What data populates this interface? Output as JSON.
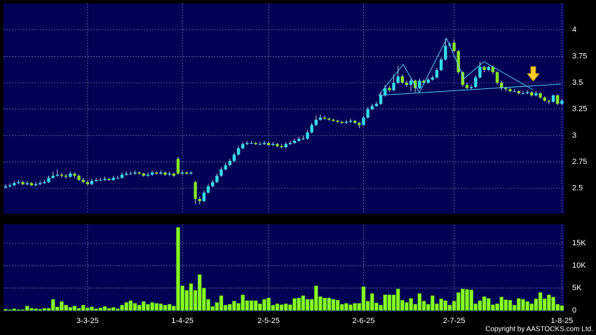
{
  "chart_data": [
    {
      "type": "candlestick",
      "open": [
        2.51,
        2.52,
        2.53,
        2.55,
        2.56,
        2.54,
        2.55,
        2.53,
        2.54,
        2.55,
        2.56,
        2.6,
        2.62,
        2.63,
        2.62,
        2.61,
        2.64,
        2.62,
        2.58,
        2.56,
        2.54,
        2.57,
        2.58,
        2.58,
        2.59,
        2.58,
        2.6,
        2.6,
        2.63,
        2.64,
        2.64,
        2.65,
        2.64,
        2.62,
        2.63,
        2.65,
        2.64,
        2.65,
        2.63,
        2.64,
        2.78,
        2.64,
        2.65,
        2.64,
        2.56,
        2.4,
        2.38,
        2.46,
        2.52,
        2.56,
        2.62,
        2.68,
        2.72,
        2.76,
        2.82,
        2.88,
        2.92,
        2.93,
        2.93,
        2.92,
        2.92,
        2.93,
        2.91,
        2.92,
        2.9,
        2.89,
        2.92,
        2.93,
        2.95,
        2.97,
        2.97,
        3.03,
        3.1,
        3.15,
        3.17,
        3.16,
        3.15,
        3.14,
        3.13,
        3.12,
        3.13,
        3.14,
        3.12,
        3.1,
        3.17,
        3.25,
        3.28,
        3.3,
        3.38,
        3.45,
        3.43,
        3.5,
        3.56,
        3.5,
        3.48,
        3.52,
        3.45,
        3.52,
        3.5,
        3.53,
        3.55,
        3.62,
        3.72,
        3.85,
        3.88,
        3.8,
        3.6,
        3.48,
        3.45,
        3.46,
        3.55,
        3.65,
        3.62,
        3.65,
        3.6,
        3.5,
        3.45,
        3.44,
        3.42,
        3.42,
        3.4,
        3.4,
        3.41,
        3.38,
        3.4,
        3.36,
        3.33,
        3.32,
        3.38,
        3.3
      ],
      "high": [
        2.54,
        2.55,
        2.57,
        2.58,
        2.57,
        2.57,
        2.56,
        2.56,
        2.57,
        2.58,
        2.62,
        2.66,
        2.68,
        2.65,
        2.64,
        2.66,
        2.65,
        2.63,
        2.6,
        2.58,
        2.59,
        2.6,
        2.6,
        2.61,
        2.6,
        2.62,
        2.62,
        2.65,
        2.66,
        2.66,
        2.67,
        2.66,
        2.65,
        2.65,
        2.67,
        2.66,
        2.67,
        2.66,
        2.66,
        2.65,
        2.8,
        2.67,
        2.66,
        2.66,
        2.57,
        2.42,
        2.48,
        2.54,
        2.58,
        2.64,
        2.7,
        2.74,
        2.78,
        2.84,
        2.9,
        2.94,
        2.95,
        2.95,
        2.94,
        2.94,
        2.95,
        2.94,
        2.94,
        2.93,
        2.92,
        2.94,
        2.95,
        2.97,
        2.99,
        3.0,
        3.05,
        3.12,
        3.19,
        3.2,
        3.19,
        3.17,
        3.16,
        3.15,
        3.14,
        3.15,
        3.16,
        3.15,
        3.13,
        3.19,
        3.27,
        3.3,
        3.32,
        3.41,
        3.48,
        3.47,
        3.58,
        3.66,
        3.58,
        3.52,
        3.54,
        3.53,
        3.54,
        3.53,
        3.55,
        3.57,
        3.64,
        3.74,
        3.92,
        3.88,
        3.91,
        3.81,
        3.61,
        3.5,
        3.48,
        3.57,
        3.7,
        3.66,
        3.66,
        3.66,
        3.61,
        3.52,
        3.46,
        3.45,
        3.44,
        3.43,
        3.42,
        3.43,
        3.42,
        3.42,
        3.41,
        3.37,
        3.34,
        3.39,
        3.39,
        3.35
      ],
      "low": [
        2.5,
        2.51,
        2.52,
        2.54,
        2.53,
        2.53,
        2.52,
        2.52,
        2.53,
        2.54,
        2.55,
        2.59,
        2.61,
        2.6,
        2.59,
        2.6,
        2.6,
        2.57,
        2.55,
        2.53,
        2.53,
        2.56,
        2.57,
        2.57,
        2.57,
        2.57,
        2.59,
        2.59,
        2.62,
        2.63,
        2.63,
        2.63,
        2.61,
        2.61,
        2.62,
        2.63,
        2.63,
        2.62,
        2.62,
        2.61,
        2.63,
        2.63,
        2.63,
        2.63,
        2.35,
        2.35,
        2.37,
        2.45,
        2.51,
        2.55,
        2.61,
        2.67,
        2.71,
        2.75,
        2.81,
        2.87,
        2.91,
        2.92,
        2.91,
        2.91,
        2.91,
        2.9,
        2.9,
        2.89,
        2.88,
        2.88,
        2.91,
        2.92,
        2.94,
        2.96,
        2.96,
        3.02,
        3.09,
        3.14,
        3.15,
        3.14,
        3.13,
        3.12,
        3.11,
        3.11,
        3.12,
        3.11,
        3.07,
        3.09,
        3.16,
        3.24,
        3.27,
        3.29,
        3.37,
        3.41,
        3.42,
        3.49,
        3.49,
        3.46,
        3.42,
        3.41,
        3.44,
        3.48,
        3.49,
        3.52,
        3.54,
        3.61,
        3.71,
        3.84,
        3.79,
        3.58,
        3.46,
        3.44,
        3.44,
        3.45,
        3.54,
        3.6,
        3.61,
        3.58,
        3.48,
        3.43,
        3.42,
        3.41,
        3.41,
        3.39,
        3.39,
        3.39,
        3.37,
        3.37,
        3.35,
        3.32,
        3.3,
        3.31,
        3.29,
        3.29
      ],
      "close": [
        2.52,
        2.53,
        2.55,
        2.56,
        2.54,
        2.55,
        2.53,
        2.54,
        2.55,
        2.56,
        2.6,
        2.62,
        2.63,
        2.62,
        2.61,
        2.64,
        2.62,
        2.58,
        2.56,
        2.54,
        2.57,
        2.58,
        2.58,
        2.59,
        2.58,
        2.6,
        2.6,
        2.63,
        2.64,
        2.64,
        2.65,
        2.64,
        2.62,
        2.63,
        2.65,
        2.64,
        2.65,
        2.63,
        2.64,
        2.62,
        2.64,
        2.65,
        2.64,
        2.65,
        2.4,
        2.38,
        2.46,
        2.52,
        2.56,
        2.62,
        2.68,
        2.72,
        2.76,
        2.82,
        2.88,
        2.92,
        2.93,
        2.93,
        2.92,
        2.92,
        2.93,
        2.91,
        2.92,
        2.9,
        2.89,
        2.92,
        2.93,
        2.95,
        2.97,
        2.97,
        3.03,
        3.1,
        3.15,
        3.17,
        3.16,
        3.15,
        3.14,
        3.13,
        3.12,
        3.13,
        3.14,
        3.12,
        3.1,
        3.17,
        3.25,
        3.28,
        3.3,
        3.38,
        3.45,
        3.43,
        3.5,
        3.56,
        3.5,
        3.48,
        3.52,
        3.45,
        3.52,
        3.5,
        3.53,
        3.55,
        3.62,
        3.72,
        3.85,
        3.86,
        3.8,
        3.6,
        3.48,
        3.45,
        3.46,
        3.55,
        3.65,
        3.62,
        3.65,
        3.6,
        3.5,
        3.45,
        3.44,
        3.42,
        3.42,
        3.4,
        3.4,
        3.41,
        3.38,
        3.4,
        3.36,
        3.33,
        3.32,
        3.38,
        3.3,
        3.33
      ],
      "up_color": "#33dde8",
      "down_color": "#88e622",
      "ylim": [
        2.26,
        4.25
      ],
      "yticks": [
        2.5,
        2.75,
        3,
        3.25,
        3.5,
        3.75,
        4
      ],
      "grid": true
    },
    {
      "type": "bar",
      "categories": [
        null,
        null,
        null,
        null,
        null,
        null,
        null,
        null,
        null,
        null,
        null,
        null,
        null,
        null,
        null,
        null,
        null,
        null,
        null,
        "3-3-25",
        null,
        null,
        null,
        null,
        null,
        null,
        null,
        null,
        null,
        null,
        null,
        null,
        null,
        null,
        null,
        null,
        null,
        null,
        null,
        null,
        null,
        "1-4-25",
        null,
        null,
        null,
        null,
        null,
        null,
        null,
        null,
        null,
        null,
        null,
        null,
        null,
        null,
        null,
        null,
        null,
        null,
        null,
        "2-5-25",
        null,
        null,
        null,
        null,
        null,
        null,
        null,
        null,
        null,
        null,
        null,
        null,
        null,
        null,
        null,
        null,
        null,
        null,
        null,
        null,
        null,
        "2-6-25",
        null,
        null,
        null,
        null,
        null,
        null,
        null,
        null,
        null,
        null,
        null,
        null,
        null,
        null,
        null,
        null,
        null,
        null,
        null,
        null,
        "2-7-25",
        null,
        null,
        null,
        null,
        null,
        null,
        null,
        null,
        null,
        null,
        null,
        null,
        null,
        null,
        null,
        null,
        null,
        null,
        null,
        null,
        null,
        null,
        null,
        null,
        "1-8-25"
      ],
      "values": [
        300,
        200,
        400,
        200,
        200,
        1000,
        500,
        400,
        300,
        500,
        500,
        2500,
        800,
        2000,
        1200,
        700,
        1000,
        500,
        1200,
        600,
        800,
        400,
        600,
        900,
        500,
        700,
        400,
        1200,
        1800,
        2200,
        1600,
        1200,
        2000,
        1400,
        1800,
        1600,
        1500,
        1200,
        1400,
        1000,
        18500,
        5500,
        4500,
        6000,
        4500,
        8000,
        5000,
        2500,
        900,
        1800,
        3300,
        1200,
        1400,
        2100,
        1600,
        3500,
        2200,
        2200,
        2200,
        1500,
        2500,
        2800,
        1200,
        1500,
        1300,
        1500,
        1300,
        2700,
        2800,
        3300,
        2500,
        2500,
        5500,
        3100,
        2800,
        2800,
        2500,
        2300,
        1400,
        1600,
        1300,
        1600,
        1600,
        5300,
        2100,
        3800,
        1700,
        1200,
        3500,
        3500,
        3500,
        4800,
        2300,
        1800,
        2700,
        1400,
        3800,
        2100,
        1400,
        3300,
        1500,
        2600,
        2200,
        1200,
        2100,
        4000,
        4800,
        4700,
        4600,
        1500,
        2200,
        3100,
        2700,
        1300,
        1500,
        3000,
        2400,
        2300,
        1200,
        2700,
        2500,
        2000,
        1500,
        2600,
        4000,
        2600,
        3500,
        3000,
        1400,
        1100
      ],
      "color": "#88ff22",
      "ylim": [
        -300,
        19200
      ],
      "yticks": [
        0,
        {
          "value": 5000,
          "label": "5K"
        },
        {
          "value": 10000,
          "label": "10K"
        },
        {
          "value": 15000,
          "label": "15K"
        }
      ],
      "grid": true,
      "annotation": "Copyright by AASTOCKS.com Ltd."
    }
  ]
}
